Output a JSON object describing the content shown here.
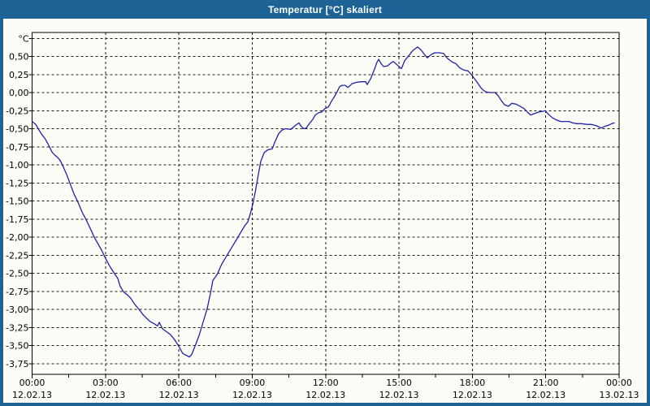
{
  "window": {
    "title": "Temperatur [°C] skaliert"
  },
  "colors": {
    "titlebar_blue": "#1E6396",
    "content_background": "#FCFDF6",
    "line_color": "#2121A8",
    "grid_color": "#1a1a1a",
    "text_color": "#000000",
    "title_text_color": "#ffffff"
  },
  "chart_data": {
    "type": "line",
    "title": "Temperatur [°C] skaliert",
    "ylabel": "°C",
    "xlabel": "",
    "grid": true,
    "legend": "none",
    "y_axis": {
      "unit_label": "°C",
      "unit_grid_value": 0.75,
      "ticks": [
        {
          "label": "0,50",
          "value": 0.5
        },
        {
          "label": "0,25",
          "value": 0.25
        },
        {
          "label": "0,00",
          "value": 0.0
        },
        {
          "label": "-0,25",
          "value": -0.25
        },
        {
          "label": "-0,50",
          "value": -0.5
        },
        {
          "label": "-0,75",
          "value": -0.75
        },
        {
          "label": "-1,00",
          "value": -1.0
        },
        {
          "label": "-1,25",
          "value": -1.25
        },
        {
          "label": "-1,50",
          "value": -1.5
        },
        {
          "label": "-1,75",
          "value": -1.75
        },
        {
          "label": "-2,00",
          "value": -2.0
        },
        {
          "label": "-2,25",
          "value": -2.25
        },
        {
          "label": "-2,50",
          "value": -2.5
        },
        {
          "label": "-2,75",
          "value": -2.75
        },
        {
          "label": "-3,00",
          "value": -3.0
        },
        {
          "label": "-3,25",
          "value": -3.25
        },
        {
          "label": "-3,50",
          "value": -3.5
        },
        {
          "label": "-3,75",
          "value": -3.75
        }
      ],
      "ylim": [
        -3.9,
        0.83
      ]
    },
    "x_axis": {
      "xlim_hours": [
        0,
        24
      ],
      "major_ticks": [
        {
          "hour": 0,
          "time": "00:00",
          "date": "12.02.13"
        },
        {
          "hour": 3,
          "time": "03:00",
          "date": "12.02.13"
        },
        {
          "hour": 6,
          "time": "06:00",
          "date": "12.02.13"
        },
        {
          "hour": 9,
          "time": "09:00",
          "date": "12.02.13"
        },
        {
          "hour": 12,
          "time": "12:00",
          "date": "12.02.13"
        },
        {
          "hour": 15,
          "time": "15:00",
          "date": "12.02.13"
        },
        {
          "hour": 18,
          "time": "18:00",
          "date": "12.02.13"
        },
        {
          "hour": 21,
          "time": "21:00",
          "date": "12.02.13"
        },
        {
          "hour": 24,
          "time": "00:00",
          "date": "13.02.13"
        }
      ],
      "vertical_grid_hours": [
        3,
        6,
        9,
        12,
        15,
        18,
        21
      ]
    },
    "series": [
      {
        "name": "Temperatur",
        "color": "#2121A8",
        "points": [
          [
            0.0,
            -0.4
          ],
          [
            0.15,
            -0.44
          ],
          [
            0.25,
            -0.5
          ],
          [
            0.38,
            -0.57
          ],
          [
            0.55,
            -0.65
          ],
          [
            0.68,
            -0.73
          ],
          [
            0.81,
            -0.82
          ],
          [
            0.91,
            -0.86
          ],
          [
            1.05,
            -0.9
          ],
          [
            1.15,
            -0.94
          ],
          [
            1.28,
            -1.03
          ],
          [
            1.41,
            -1.13
          ],
          [
            1.54,
            -1.25
          ],
          [
            1.71,
            -1.4
          ],
          [
            1.88,
            -1.52
          ],
          [
            2.04,
            -1.65
          ],
          [
            2.21,
            -1.76
          ],
          [
            2.38,
            -1.88
          ],
          [
            2.54,
            -2.0
          ],
          [
            2.67,
            -2.08
          ],
          [
            2.84,
            -2.18
          ],
          [
            3.01,
            -2.3
          ],
          [
            3.17,
            -2.4
          ],
          [
            3.34,
            -2.49
          ],
          [
            3.5,
            -2.57
          ],
          [
            3.6,
            -2.68
          ],
          [
            3.74,
            -2.76
          ],
          [
            3.9,
            -2.8
          ],
          [
            4.04,
            -2.85
          ],
          [
            4.2,
            -2.93
          ],
          [
            4.37,
            -3.0
          ],
          [
            4.5,
            -3.06
          ],
          [
            4.67,
            -3.12
          ],
          [
            4.83,
            -3.17
          ],
          [
            5.0,
            -3.2
          ],
          [
            5.13,
            -3.23
          ],
          [
            5.2,
            -3.18
          ],
          [
            5.33,
            -3.27
          ],
          [
            5.5,
            -3.31
          ],
          [
            5.66,
            -3.35
          ],
          [
            5.83,
            -3.42
          ],
          [
            6.03,
            -3.53
          ],
          [
            6.16,
            -3.61
          ],
          [
            6.33,
            -3.64
          ],
          [
            6.43,
            -3.66
          ],
          [
            6.53,
            -3.62
          ],
          [
            6.66,
            -3.51
          ],
          [
            6.83,
            -3.36
          ],
          [
            6.99,
            -3.18
          ],
          [
            7.16,
            -2.99
          ],
          [
            7.29,
            -2.78
          ],
          [
            7.39,
            -2.6
          ],
          [
            7.56,
            -2.52
          ],
          [
            7.76,
            -2.37
          ],
          [
            7.99,
            -2.24
          ],
          [
            8.22,
            -2.11
          ],
          [
            8.42,
            -2.0
          ],
          [
            8.59,
            -1.9
          ],
          [
            8.72,
            -1.83
          ],
          [
            8.82,
            -1.79
          ],
          [
            8.92,
            -1.68
          ],
          [
            9.02,
            -1.55
          ],
          [
            9.12,
            -1.38
          ],
          [
            9.25,
            -1.13
          ],
          [
            9.35,
            -0.95
          ],
          [
            9.49,
            -0.83
          ],
          [
            9.65,
            -0.79
          ],
          [
            9.82,
            -0.78
          ],
          [
            9.92,
            -0.69
          ],
          [
            10.08,
            -0.57
          ],
          [
            10.21,
            -0.52
          ],
          [
            10.35,
            -0.5
          ],
          [
            10.58,
            -0.51
          ],
          [
            10.75,
            -0.46
          ],
          [
            10.91,
            -0.42
          ],
          [
            11.01,
            -0.47
          ],
          [
            11.11,
            -0.5
          ],
          [
            11.21,
            -0.49
          ],
          [
            11.31,
            -0.44
          ],
          [
            11.48,
            -0.37
          ],
          [
            11.58,
            -0.31
          ],
          [
            11.71,
            -0.28
          ],
          [
            11.84,
            -0.27
          ],
          [
            11.98,
            -0.22
          ],
          [
            12.11,
            -0.2
          ],
          [
            12.24,
            -0.12
          ],
          [
            12.37,
            -0.05
          ],
          [
            12.47,
            0.01
          ],
          [
            12.57,
            0.08
          ],
          [
            12.67,
            0.1
          ],
          [
            12.81,
            0.1
          ],
          [
            12.91,
            0.07
          ],
          [
            13.07,
            0.12
          ],
          [
            13.24,
            0.14
          ],
          [
            13.44,
            0.15
          ],
          [
            13.64,
            0.15
          ],
          [
            13.7,
            0.11
          ],
          [
            13.84,
            0.19
          ],
          [
            13.97,
            0.3
          ],
          [
            14.1,
            0.42
          ],
          [
            14.17,
            0.46
          ],
          [
            14.27,
            0.4
          ],
          [
            14.37,
            0.36
          ],
          [
            14.53,
            0.37
          ],
          [
            14.67,
            0.41
          ],
          [
            14.77,
            0.43
          ],
          [
            14.9,
            0.39
          ],
          [
            15.0,
            0.36
          ],
          [
            15.1,
            0.33
          ],
          [
            15.23,
            0.44
          ],
          [
            15.4,
            0.51
          ],
          [
            15.56,
            0.58
          ],
          [
            15.76,
            0.63
          ],
          [
            15.9,
            0.59
          ],
          [
            16.03,
            0.53
          ],
          [
            16.16,
            0.48
          ],
          [
            16.33,
            0.53
          ],
          [
            16.46,
            0.55
          ],
          [
            16.66,
            0.55
          ],
          [
            16.83,
            0.54
          ],
          [
            16.93,
            0.49
          ],
          [
            17.06,
            0.45
          ],
          [
            17.19,
            0.42
          ],
          [
            17.33,
            0.4
          ],
          [
            17.49,
            0.34
          ],
          [
            17.66,
            0.31
          ],
          [
            17.82,
            0.3
          ],
          [
            17.96,
            0.25
          ],
          [
            18.09,
            0.19
          ],
          [
            18.22,
            0.13
          ],
          [
            18.32,
            0.08
          ],
          [
            18.42,
            0.04
          ],
          [
            18.55,
            0.01
          ],
          [
            18.72,
            0.0
          ],
          [
            18.92,
            0.0
          ],
          [
            19.05,
            -0.04
          ],
          [
            19.18,
            -0.11
          ],
          [
            19.32,
            -0.17
          ],
          [
            19.48,
            -0.19
          ],
          [
            19.61,
            -0.15
          ],
          [
            19.78,
            -0.16
          ],
          [
            19.95,
            -0.19
          ],
          [
            20.11,
            -0.22
          ],
          [
            20.28,
            -0.28
          ],
          [
            20.38,
            -0.31
          ],
          [
            20.55,
            -0.29
          ],
          [
            20.71,
            -0.27
          ],
          [
            20.88,
            -0.26
          ],
          [
            20.98,
            -0.25
          ],
          [
            21.11,
            -0.3
          ],
          [
            21.28,
            -0.35
          ],
          [
            21.44,
            -0.38
          ],
          [
            21.61,
            -0.4
          ],
          [
            21.94,
            -0.4
          ],
          [
            22.11,
            -0.42
          ],
          [
            22.27,
            -0.43
          ],
          [
            22.47,
            -0.43
          ],
          [
            22.67,
            -0.44
          ],
          [
            22.87,
            -0.44
          ],
          [
            23.07,
            -0.46
          ],
          [
            23.27,
            -0.49
          ],
          [
            23.4,
            -0.47
          ],
          [
            23.57,
            -0.45
          ],
          [
            23.7,
            -0.43
          ],
          [
            23.8,
            -0.42
          ]
        ]
      }
    ]
  }
}
